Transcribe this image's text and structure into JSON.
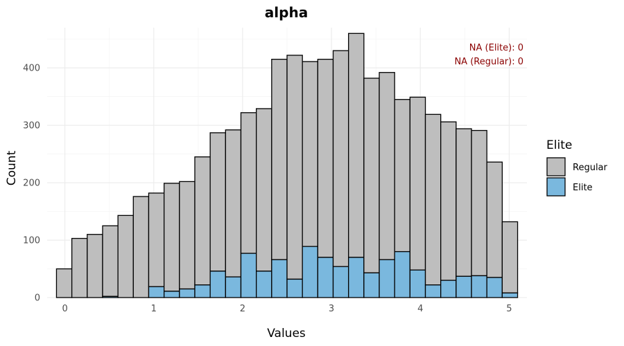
{
  "chart_data": {
    "type": "bar",
    "stacked": true,
    "title": "alpha",
    "xlabel": "Values",
    "ylabel": "Count",
    "xlim": [
      -0.2,
      5.2
    ],
    "ylim": [
      0,
      470
    ],
    "x_ticks": [
      0,
      1,
      2,
      3,
      4,
      5
    ],
    "y_ticks": [
      0,
      100,
      200,
      300,
      400
    ],
    "x_tick_labels": [
      "0",
      "1",
      "2",
      "3",
      "4",
      "5"
    ],
    "y_tick_labels": [
      "0",
      "100",
      "200",
      "300",
      "400"
    ],
    "bin_width": 0.173,
    "bin_start": -0.095,
    "grid": true,
    "legend": {
      "title": "Elite",
      "position": "right",
      "entries": [
        {
          "label": "Regular",
          "color": "#bebebe"
        },
        {
          "label": "Elite",
          "color": "#7ab8de"
        }
      ]
    },
    "annotations": {
      "na_elite": "NA (Elite): 0",
      "na_regular": "NA (Regular): 0",
      "color": "#8b0000"
    },
    "series": [
      {
        "name": "Elite",
        "color": "#7ab8de",
        "values": [
          0,
          0,
          0,
          2,
          0,
          0,
          19,
          11,
          15,
          22,
          46,
          36,
          77,
          46,
          66,
          32,
          89,
          70,
          54,
          70,
          43,
          66,
          80,
          48,
          22,
          30,
          37,
          38,
          35,
          8
        ]
      },
      {
        "name": "Regular",
        "color": "#bebebe",
        "values": [
          50,
          103,
          110,
          123,
          143,
          176,
          163,
          188,
          187,
          223,
          241,
          256,
          245,
          283,
          349,
          390,
          322,
          345,
          376,
          390,
          339,
          326,
          265,
          301,
          297,
          276,
          257,
          253,
          201,
          124
        ]
      }
    ]
  }
}
